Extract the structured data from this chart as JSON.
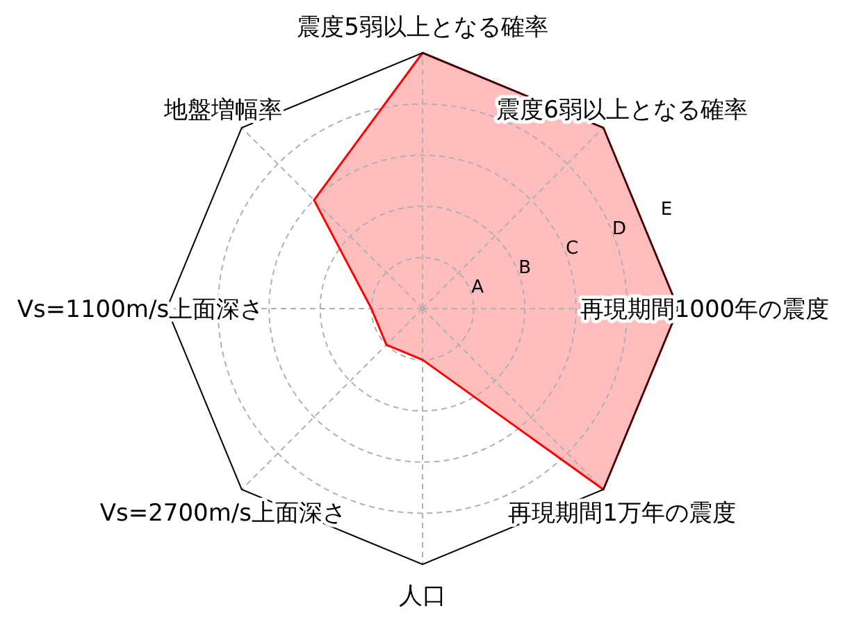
{
  "chart_data": {
    "type": "radar",
    "categories": [
      "震度5弱以上となる確率",
      "震度6弱以上となる確率",
      "再現期間1000年の震度",
      "再現期間1万年の震度",
      "人口",
      "Vs=2700m/s上面深さ",
      "Vs=1100m/s上面深さ",
      "地盤増幅率"
    ],
    "series": [
      {
        "color": "#ff0000",
        "values": [
          5,
          5,
          5,
          5,
          1,
          1,
          1,
          3
        ]
      }
    ],
    "ylim": [
      0,
      5
    ],
    "yticks": [
      {
        "value": 1,
        "label": "A"
      },
      {
        "value": 2,
        "label": "B"
      },
      {
        "value": 3,
        "label": "C"
      },
      {
        "value": 4,
        "label": "D"
      },
      {
        "value": 5,
        "label": "E"
      }
    ],
    "grid": true
  }
}
